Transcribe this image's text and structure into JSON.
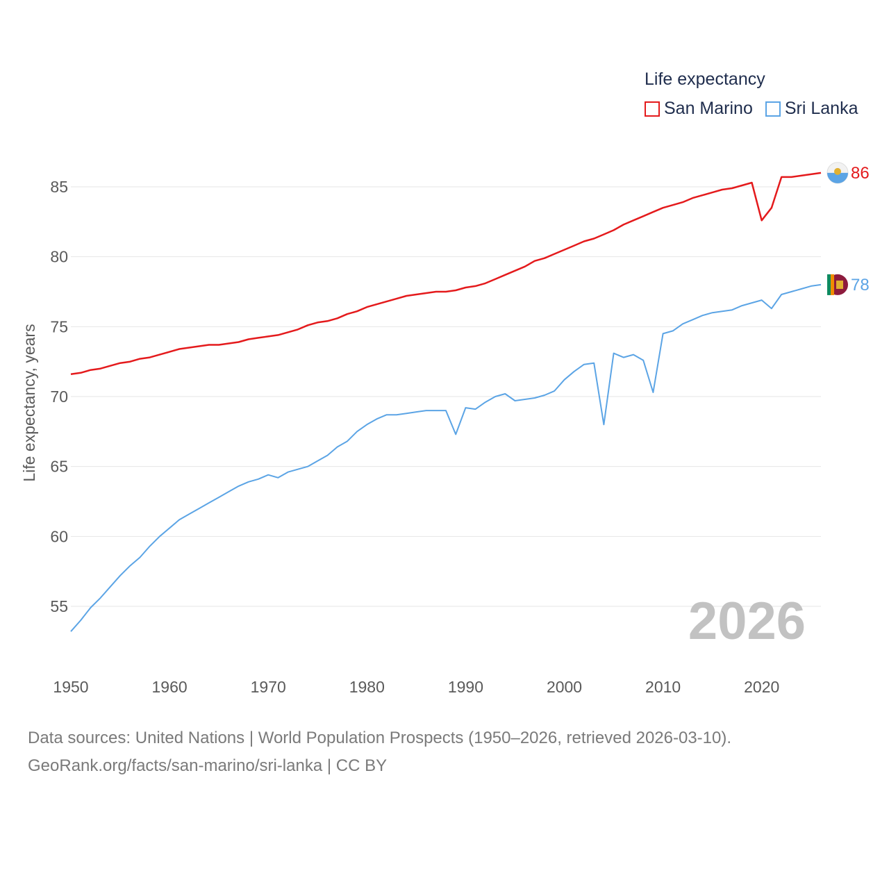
{
  "legend": {
    "title": "Life expectancy",
    "items": [
      {
        "name": "San Marino",
        "color": "#e41a1c"
      },
      {
        "name": "Sri Lanka",
        "color": "#5ba4e5"
      }
    ]
  },
  "year_label": "2026",
  "footer": {
    "line1": "Data sources: United Nations | World Population Prospects (1950–2026, retrieved 2026-03-10).",
    "line2": "GeoRank.org/facts/san-marino/sri-lanka | CC BY"
  },
  "chart_data": {
    "type": "line",
    "title": "Life expectancy",
    "xlabel": "",
    "ylabel": "Life expectancy, years",
    "xlim": [
      1950,
      2026
    ],
    "ylim": [
      52,
      88
    ],
    "x_ticks": [
      1950,
      1960,
      1970,
      1980,
      1990,
      2000,
      2010,
      2020
    ],
    "y_ticks": [
      55,
      60,
      65,
      70,
      75,
      80,
      85
    ],
    "grid": true,
    "legend_position": "top-right",
    "x": [
      1950,
      1951,
      1952,
      1953,
      1954,
      1955,
      1956,
      1957,
      1958,
      1959,
      1960,
      1961,
      1962,
      1963,
      1964,
      1965,
      1966,
      1967,
      1968,
      1969,
      1970,
      1971,
      1972,
      1973,
      1974,
      1975,
      1976,
      1977,
      1978,
      1979,
      1980,
      1981,
      1982,
      1983,
      1984,
      1985,
      1986,
      1987,
      1988,
      1989,
      1990,
      1991,
      1992,
      1993,
      1994,
      1995,
      1996,
      1997,
      1998,
      1999,
      2000,
      2001,
      2002,
      2003,
      2004,
      2005,
      2006,
      2007,
      2008,
      2009,
      2010,
      2011,
      2012,
      2013,
      2014,
      2015,
      2016,
      2017,
      2018,
      2019,
      2020,
      2021,
      2022,
      2023,
      2024,
      2025,
      2026
    ],
    "series": [
      {
        "name": "San Marino",
        "color": "#e41a1c",
        "end_label": "86",
        "values": [
          71.6,
          71.7,
          71.9,
          72.0,
          72.2,
          72.4,
          72.5,
          72.7,
          72.8,
          73.0,
          73.2,
          73.4,
          73.5,
          73.6,
          73.7,
          73.7,
          73.8,
          73.9,
          74.1,
          74.2,
          74.3,
          74.4,
          74.6,
          74.8,
          75.1,
          75.3,
          75.4,
          75.6,
          75.9,
          76.1,
          76.4,
          76.6,
          76.8,
          77.0,
          77.2,
          77.3,
          77.4,
          77.5,
          77.5,
          77.6,
          77.8,
          77.9,
          78.1,
          78.4,
          78.7,
          79.0,
          79.3,
          79.7,
          79.9,
          80.2,
          80.5,
          80.8,
          81.1,
          81.3,
          81.6,
          81.9,
          82.3,
          82.6,
          82.9,
          83.2,
          83.5,
          83.7,
          83.9,
          84.2,
          84.4,
          84.6,
          84.8,
          84.9,
          85.1,
          85.3,
          82.6,
          83.5,
          85.7,
          85.7,
          85.8,
          85.9,
          86.0
        ]
      },
      {
        "name": "Sri Lanka",
        "color": "#5ba4e5",
        "end_label": "78",
        "values": [
          53.2,
          54.0,
          54.9,
          55.6,
          56.4,
          57.2,
          57.9,
          58.5,
          59.3,
          60.0,
          60.6,
          61.2,
          61.6,
          62.0,
          62.4,
          62.8,
          63.2,
          63.6,
          63.9,
          64.1,
          64.4,
          64.2,
          64.6,
          64.8,
          65.0,
          65.4,
          65.8,
          66.4,
          66.8,
          67.5,
          68.0,
          68.4,
          68.7,
          68.7,
          68.8,
          68.9,
          69.0,
          69.0,
          69.0,
          67.3,
          69.2,
          69.1,
          69.6,
          70.0,
          70.2,
          69.7,
          69.8,
          69.9,
          70.1,
          70.4,
          71.2,
          71.8,
          72.3,
          72.4,
          68.0,
          73.1,
          72.8,
          73.0,
          72.6,
          70.3,
          74.5,
          74.7,
          75.2,
          75.5,
          75.8,
          76.0,
          76.1,
          76.2,
          76.5,
          76.7,
          76.9,
          76.3,
          77.3,
          77.5,
          77.7,
          77.9,
          78.0
        ]
      }
    ]
  }
}
